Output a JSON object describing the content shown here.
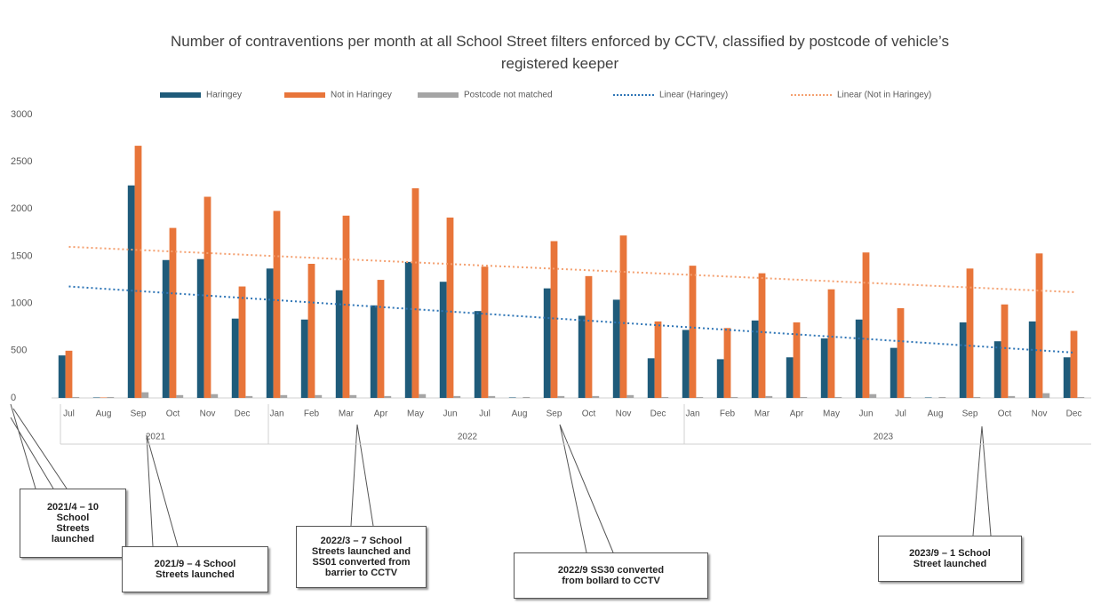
{
  "chart_data": {
    "type": "bar",
    "title": "Number of contraventions per month at all School Street filters enforced by CCTV, classified by postcode of vehicle’s registered keeper",
    "groups": [
      {
        "label": "2021",
        "categories": [
          "Jul",
          "Aug",
          "Sep",
          "Oct",
          "Nov",
          "Dec"
        ]
      },
      {
        "label": "2022",
        "categories": [
          "Jan",
          "Feb",
          "Mar",
          "Apr",
          "May",
          "Jun",
          "Jul",
          "Aug",
          "Sep",
          "Oct",
          "Nov",
          "Dec"
        ]
      },
      {
        "label": "2023",
        "categories": [
          "Jan",
          "Feb",
          "Mar",
          "Apr",
          "May",
          "Jun",
          "Jul",
          "Aug",
          "Sep",
          "Oct",
          "Nov",
          "Dec"
        ]
      }
    ],
    "series": [
      {
        "name": "Haringey",
        "color": "#1f5b7a",
        "values": [
          450,
          5,
          2250,
          1460,
          1470,
          840,
          1370,
          830,
          1140,
          980,
          1440,
          1230,
          920,
          5,
          1160,
          870,
          1040,
          420,
          720,
          410,
          820,
          430,
          630,
          830,
          530,
          5,
          800,
          600,
          810,
          430
        ]
      },
      {
        "name": "Not in Haringey",
        "color": "#e8753a",
        "values": [
          500,
          5,
          2670,
          1800,
          2130,
          1180,
          1980,
          1420,
          1930,
          1250,
          2220,
          1910,
          1390,
          0,
          1660,
          1290,
          1720,
          810,
          1400,
          740,
          1320,
          800,
          1150,
          1540,
          950,
          0,
          1370,
          990,
          1530,
          710
        ]
      },
      {
        "name": "Postcode not matched",
        "color": "#a5a5a5",
        "values": [
          10,
          10,
          60,
          30,
          40,
          20,
          30,
          30,
          30,
          20,
          40,
          20,
          20,
          10,
          20,
          20,
          30,
          10,
          10,
          10,
          20,
          10,
          10,
          40,
          10,
          10,
          10,
          20,
          50,
          10
        ]
      }
    ],
    "trendlines": [
      {
        "name": "Linear (Haringey)",
        "color": "#2e75b6",
        "start": 1180,
        "end": 480
      },
      {
        "name": "Linear (Not in Haringey)",
        "color": "#f4a070",
        "start": 1600,
        "end": 1120
      }
    ],
    "ylim": [
      0,
      3000
    ],
    "yticks": [
      0,
      500,
      1000,
      1500,
      2000,
      2500,
      3000
    ],
    "annotations": [
      {
        "lines": [
          "2021/4 – 10",
          "School",
          "Streets",
          "launched"
        ]
      },
      {
        "lines": [
          "2021/9 – 4 School",
          "Streets launched"
        ]
      },
      {
        "lines": [
          "2022/3 – 7 School",
          "Streets launched and",
          "SS01 converted from",
          "barrier to CCTV"
        ]
      },
      {
        "lines": [
          "2022/9 SS30 converted",
          "from bollard to CCTV"
        ]
      },
      {
        "lines": [
          "2023/9 – 1 School",
          "Street launched"
        ]
      }
    ]
  }
}
